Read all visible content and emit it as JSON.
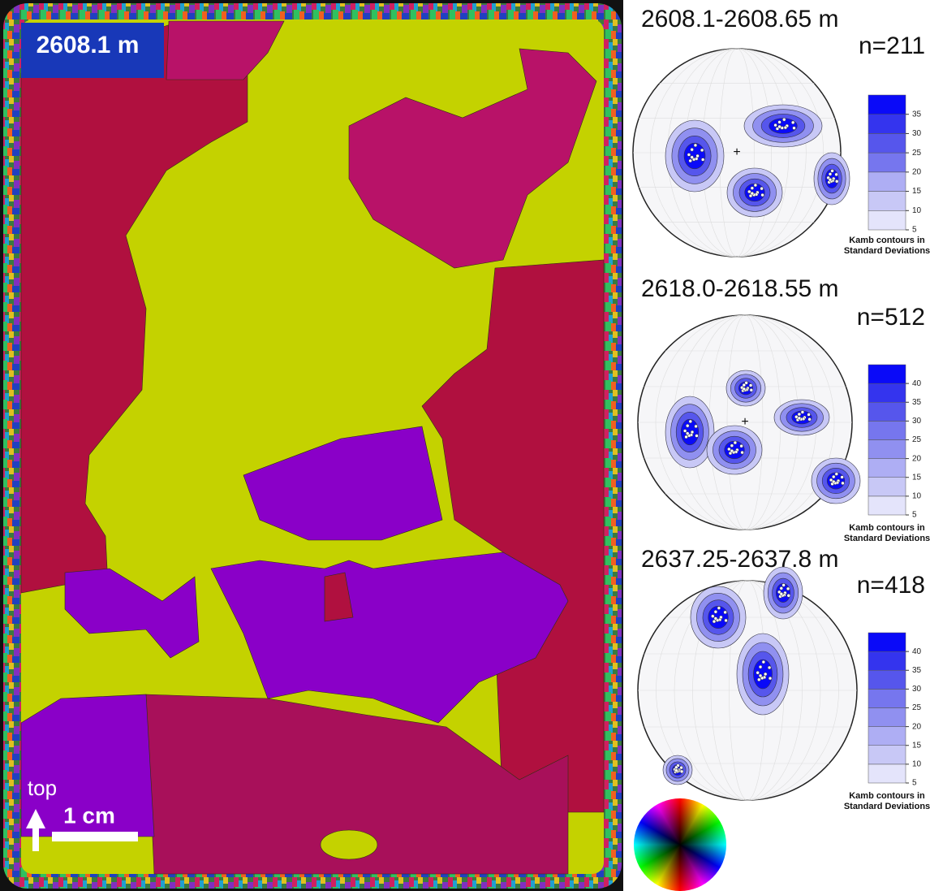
{
  "map": {
    "depth_label": "2608.1 m",
    "orientation_label": "top",
    "scale_label": "1 cm"
  },
  "pole_figures": [
    {
      "depth": "2608.1-2608.65 m",
      "n": "n=211",
      "colorbar_ticks": [
        5,
        10,
        15,
        20,
        25,
        30,
        35
      ],
      "colorbar_title": [
        "Kamb contours in",
        "Standard Deviations"
      ]
    },
    {
      "depth": "2618.0-2618.55 m",
      "n": "n=512",
      "colorbar_ticks": [
        5,
        10,
        15,
        20,
        25,
        30,
        35,
        40
      ],
      "colorbar_title": [
        "Kamb contours in",
        "Standard Deviations"
      ]
    },
    {
      "depth": "2637.25-2637.8 m",
      "n": "n=418",
      "colorbar_ticks": [
        5,
        10,
        15,
        20,
        25,
        30,
        35,
        40
      ],
      "colorbar_title": [
        "Kamb contours in",
        "Standard Deviations"
      ]
    }
  ]
}
